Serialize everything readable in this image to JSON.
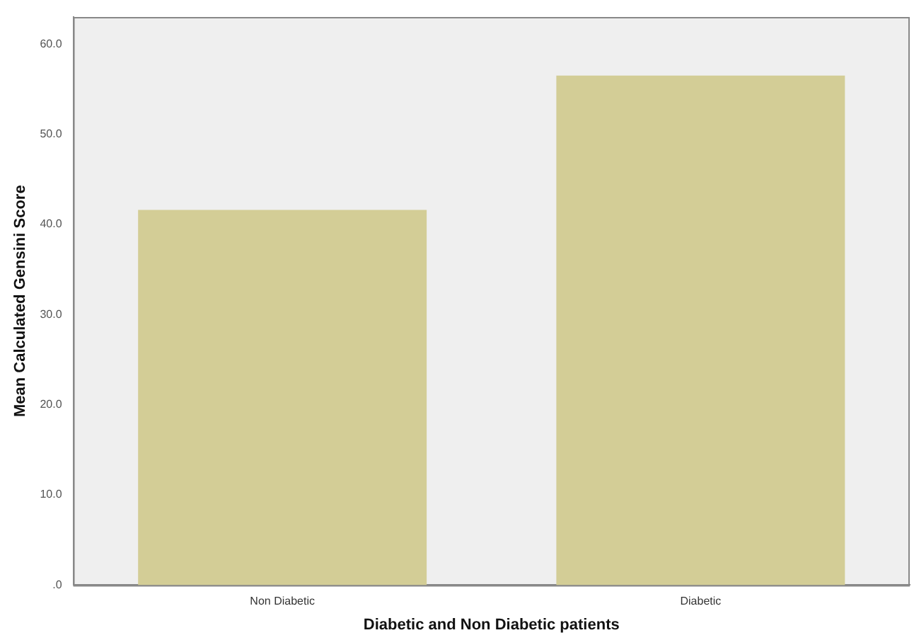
{
  "chart_data": {
    "type": "bar",
    "xlabel": "Diabetic and Non Diabetic patients",
    "ylabel": "Mean Calculated Gensini Score",
    "categories": [
      "Non Diabetic",
      "Diabetic"
    ],
    "values": [
      41.6,
      56.5
    ],
    "color": "#d3cd96",
    "ylim": [
      0,
      63
    ],
    "yticks": [
      {
        "value": 0,
        "label": ".0"
      },
      {
        "value": 10,
        "label": "10.0"
      },
      {
        "value": 20,
        "label": "20.0"
      },
      {
        "value": 30,
        "label": "30.0"
      },
      {
        "value": 40,
        "label": "40.0"
      },
      {
        "value": 50,
        "label": "50.0"
      },
      {
        "value": 60,
        "label": "60.0"
      }
    ],
    "grid": false,
    "legend": false
  }
}
